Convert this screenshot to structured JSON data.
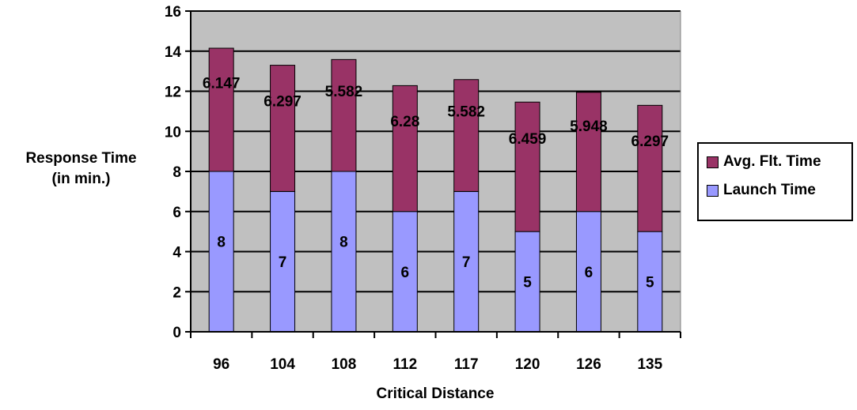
{
  "chart_data": {
    "type": "bar",
    "stacked": true,
    "categories": [
      "96",
      "104",
      "108",
      "112",
      "117",
      "120",
      "126",
      "135"
    ],
    "series": [
      {
        "name": "Launch Time",
        "values": [
          8,
          7,
          8,
          6,
          7,
          5,
          6,
          5
        ],
        "color": "#9999ff",
        "labels": [
          "8",
          "7",
          "8",
          "6",
          "7",
          "5",
          "6",
          "5"
        ]
      },
      {
        "name": "Avg. Flt. Time",
        "values": [
          6.147,
          6.297,
          5.582,
          6.28,
          5.582,
          6.459,
          5.948,
          6.297
        ],
        "color": "#993366",
        "labels": [
          "6.147",
          "6.297",
          "5.582",
          "6.28",
          "5.582",
          "6.459",
          "5.948",
          "6.297"
        ]
      }
    ],
    "xlabel": "Critical Distance",
    "ylabel_line1": "Response Time",
    "ylabel_line2": "(in min.)",
    "ylim": [
      0,
      16
    ],
    "yticks": [
      "0",
      "2",
      "4",
      "6",
      "8",
      "10",
      "12",
      "14",
      "16"
    ],
    "grid": true,
    "plot_background": "#c0c0c0",
    "legend_position": "right",
    "legend": [
      {
        "name": "Avg. Flt. Time",
        "color": "#993366"
      },
      {
        "name": "Launch Time",
        "color": "#9999ff"
      }
    ]
  }
}
